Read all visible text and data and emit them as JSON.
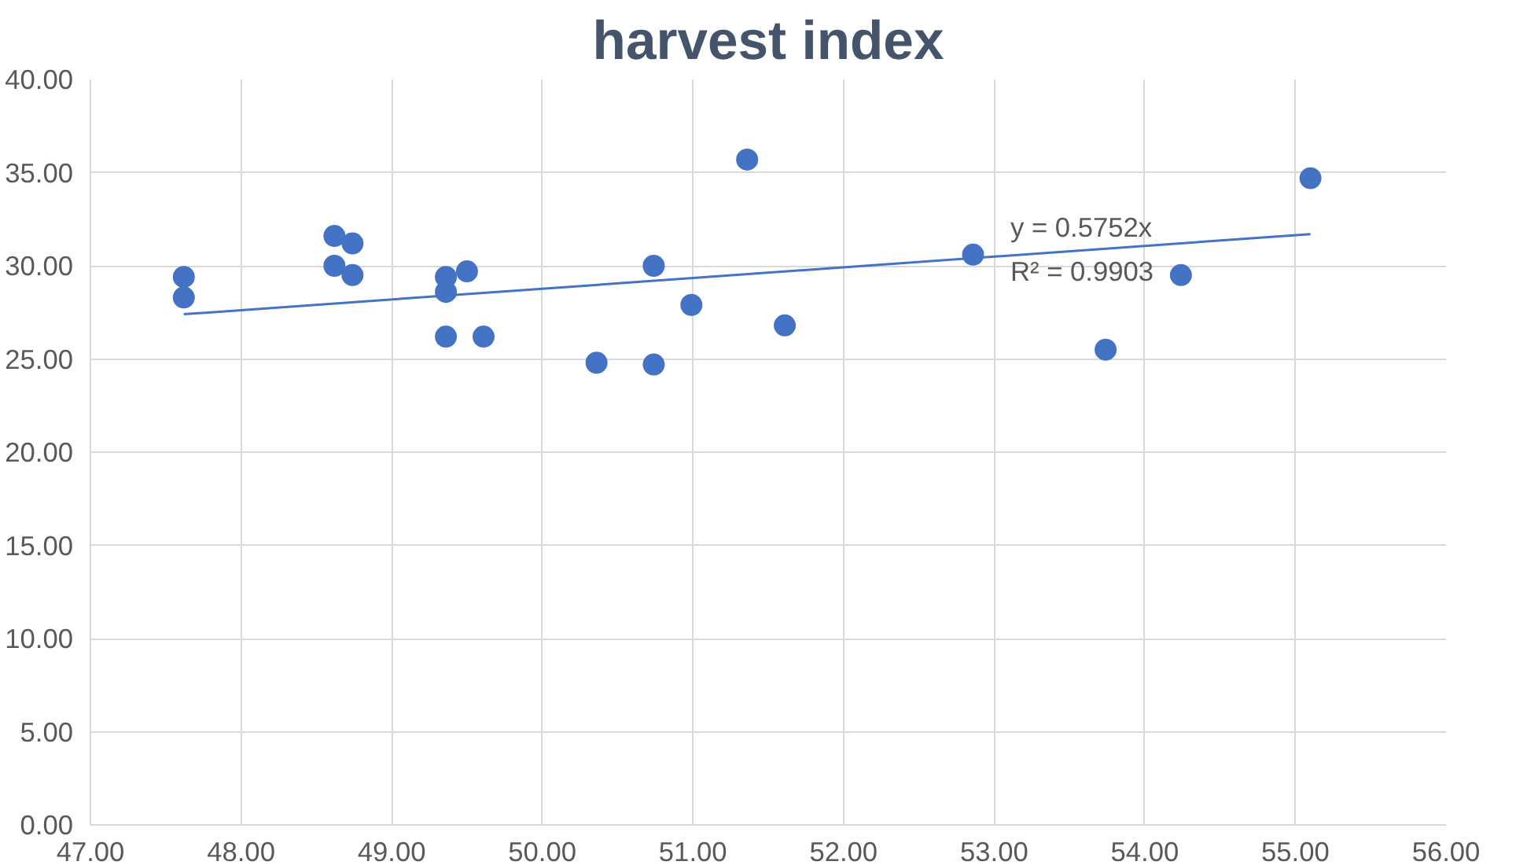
{
  "chart_data": {
    "type": "scatter",
    "title": "harvest index",
    "series": [
      {
        "color": "#4472c4",
        "marker": "circle",
        "x": [
          47.62,
          47.62,
          48.62,
          48.62,
          48.74,
          48.74,
          49.36,
          49.36,
          49.5,
          49.36,
          49.61,
          50.36,
          50.74,
          50.74,
          50.99,
          51.36,
          51.61,
          52.86,
          53.74,
          54.24,
          55.1
        ],
        "values": [
          29.4,
          28.3,
          31.6,
          30.0,
          31.2,
          29.5,
          29.4,
          28.6,
          29.7,
          26.2,
          26.2,
          24.8,
          30.0,
          24.7,
          27.9,
          35.7,
          26.8,
          30.6,
          25.5,
          29.5,
          34.7
        ]
      },
      {
        "type": "line",
        "color": "#4472c4",
        "x": [
          47.62,
          55.1
        ],
        "values": [
          27.4,
          31.7
        ]
      }
    ],
    "annotations": [
      "y = 0.5752x",
      "R² = 0.9903"
    ],
    "xlim": [
      47,
      56
    ],
    "ylim": [
      0,
      40
    ],
    "xticks": [
      {
        "value": 47,
        "label": "47.00"
      },
      {
        "value": 48,
        "label": "48.00"
      },
      {
        "value": 49,
        "label": "49.00"
      },
      {
        "value": 50,
        "label": "50.00"
      },
      {
        "value": 51,
        "label": "51.00"
      },
      {
        "value": 52,
        "label": "52.00"
      },
      {
        "value": 53,
        "label": "53.00"
      },
      {
        "value": 54,
        "label": "54.00"
      },
      {
        "value": 55,
        "label": "55.00"
      },
      {
        "value": 56,
        "label": "56.00"
      }
    ],
    "yticks": [
      {
        "value": 0,
        "label": "0.00"
      },
      {
        "value": 5,
        "label": "5.00"
      },
      {
        "value": 10,
        "label": "10.00"
      },
      {
        "value": 15,
        "label": "15.00"
      },
      {
        "value": 20,
        "label": "20.00"
      },
      {
        "value": 25,
        "label": "25.00"
      },
      {
        "value": 30,
        "label": "30.00"
      },
      {
        "value": 35,
        "label": "35.00"
      },
      {
        "value": 40,
        "label": "40.00"
      }
    ],
    "grid": true
  }
}
